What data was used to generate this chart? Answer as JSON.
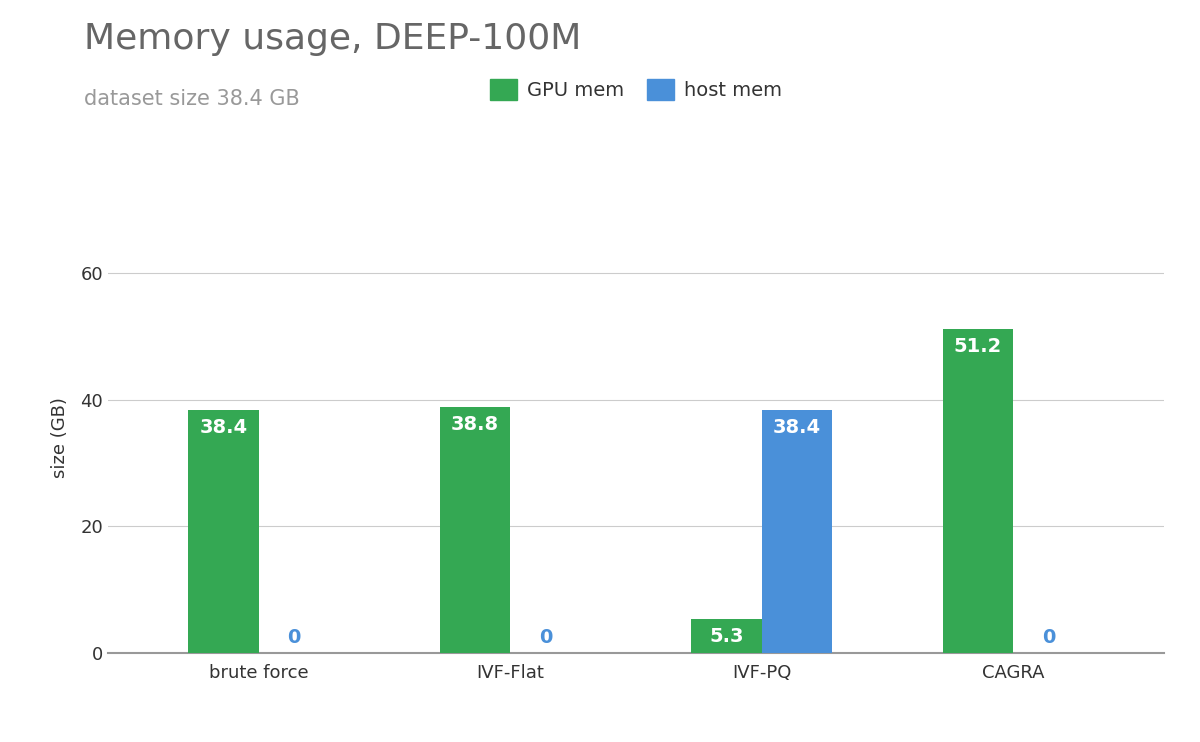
{
  "title": "Memory usage, DEEP-100M",
  "subtitle": "dataset size 38.4 GB",
  "ylabel": "size (GB)",
  "categories": [
    "brute force",
    "IVF-Flat",
    "IVF-PQ",
    "CAGRA"
  ],
  "gpu_mem": [
    38.4,
    38.8,
    5.3,
    51.2
  ],
  "host_mem": [
    0,
    0,
    38.4,
    0
  ],
  "gpu_color": "#34a853",
  "host_color": "#4a90d9",
  "label_color_gpu": "#ffffff",
  "label_color_host_zero": "#4a90d9",
  "label_color_host_nonzero": "#ffffff",
  "background_color": "#ffffff",
  "title_color": "#666666",
  "subtitle_color": "#999999",
  "legend_text_color": "#333333",
  "grid_color": "#cccccc",
  "tick_color": "#333333",
  "spine_color": "#999999",
  "ylim": [
    0,
    68
  ],
  "yticks": [
    0,
    20,
    40,
    60
  ],
  "bar_width": 0.28,
  "title_fontsize": 26,
  "subtitle_fontsize": 15,
  "ylabel_fontsize": 13,
  "tick_fontsize": 13,
  "legend_fontsize": 14,
  "annotation_fontsize": 14
}
